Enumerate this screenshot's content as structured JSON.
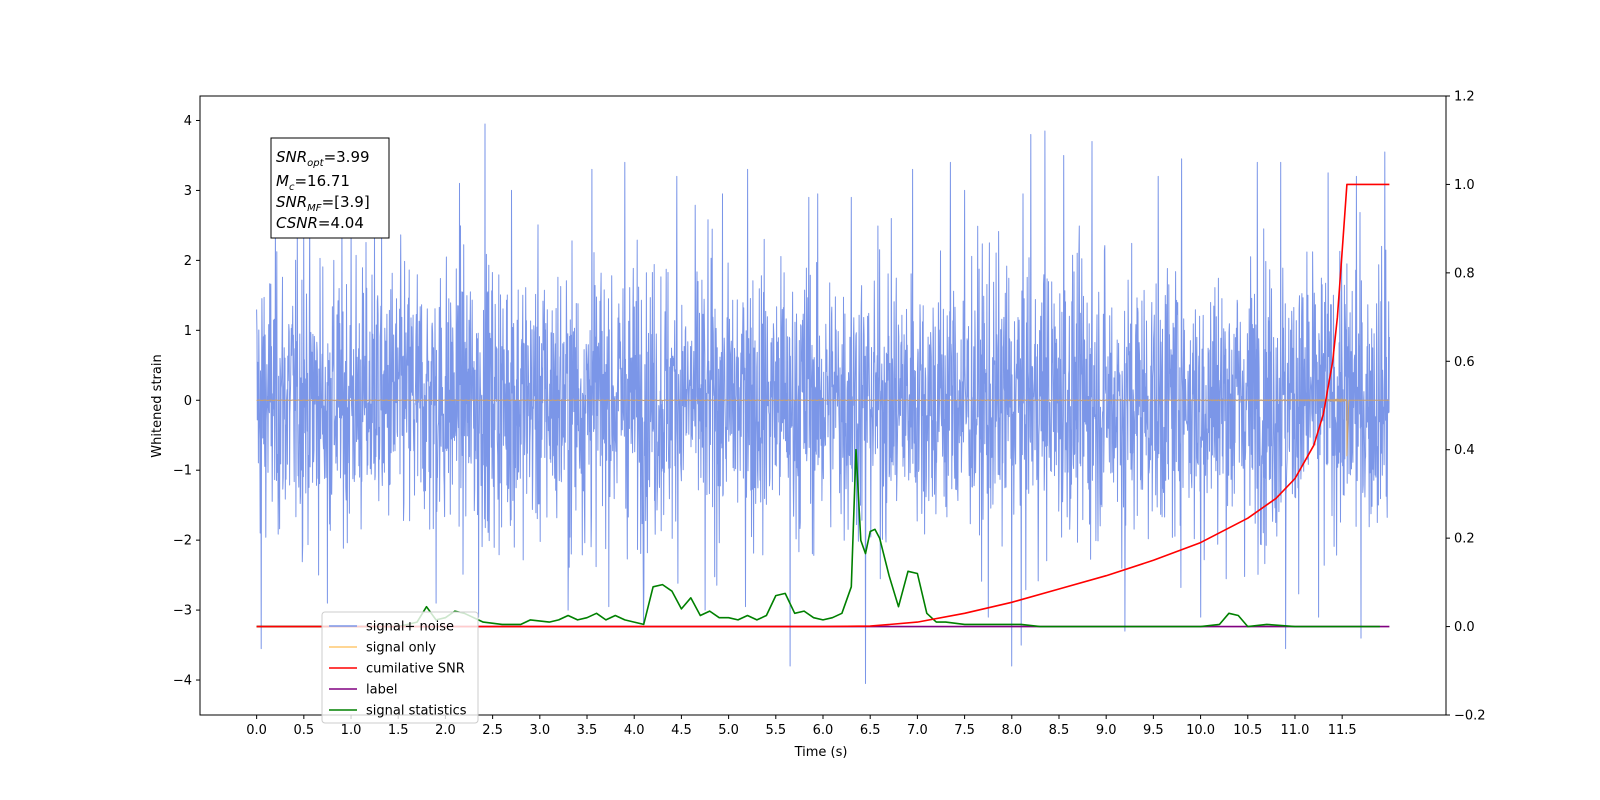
{
  "chart_data": {
    "type": "line",
    "xlabel": "Time (s)",
    "ylabel": "Whitened strain",
    "xlim": [
      -0.6,
      12.6
    ],
    "ylim": [
      -4.5,
      4.35
    ],
    "y2lim": [
      -0.2,
      1.2
    ],
    "x_ticks": [
      "0.0",
      "0.5",
      "1.0",
      "1.5",
      "2.0",
      "2.5",
      "3.0",
      "3.5",
      "4.0",
      "4.5",
      "5.0",
      "5.5",
      "6.0",
      "6.5",
      "7.0",
      "7.5",
      "8.0",
      "8.5",
      "9.0",
      "9.5",
      "10.0",
      "10.5",
      "11.0",
      "11.5"
    ],
    "y_ticks": [
      "−4",
      "−3",
      "−2",
      "−1",
      "0",
      "1",
      "2",
      "3",
      "4"
    ],
    "y2_ticks": [
      "−0.2",
      "0.0",
      "0.2",
      "0.4",
      "0.6",
      "0.8",
      "1.0",
      "1.2"
    ],
    "info_box": {
      "snr_opt": {
        "base": "SNR",
        "sub": "opt",
        "value": "=3.99"
      },
      "mc": {
        "base": "M",
        "sub": "c",
        "value": "=16.71"
      },
      "snr_mf": {
        "base": "SNR",
        "sub": "MF",
        "value": "=[3.9]"
      },
      "csnr": {
        "base": "CSNR",
        "value": "=4.04"
      }
    },
    "legend": {
      "placement": "lower-left",
      "entries": [
        {
          "label": "signal+ noise",
          "color": "#7b96e8"
        },
        {
          "label": "signal only",
          "color": "#ffc870"
        },
        {
          "label": "cumilative SNR",
          "color": "#ff0000"
        },
        {
          "label": "label",
          "color": "#800080"
        },
        {
          "label": "signal statistics",
          "color": "#008000"
        }
      ]
    },
    "series": [
      {
        "name": "signal+ noise",
        "axis": "left",
        "color": "#7b96e8",
        "kind": "noise",
        "x_range": [
          0.0,
          12.0
        ],
        "envelope_typical": 1.3,
        "peaks": [
          [
            0.05,
            -3.55
          ],
          [
            0.2,
            2.5
          ],
          [
            0.5,
            2.4
          ],
          [
            0.75,
            -2.9
          ],
          [
            1.0,
            2.5
          ],
          [
            1.25,
            2.5
          ],
          [
            1.9,
            -2.9
          ],
          [
            2.15,
            3.1
          ],
          [
            2.35,
            -3.1
          ],
          [
            2.42,
            3.95
          ],
          [
            2.7,
            3.0
          ],
          [
            3.3,
            -3.0
          ],
          [
            3.55,
            3.3
          ],
          [
            3.9,
            3.4
          ],
          [
            4.1,
            -3.2
          ],
          [
            4.45,
            3.2
          ],
          [
            4.75,
            -3.0
          ],
          [
            5.2,
            3.3
          ],
          [
            5.65,
            -3.8
          ],
          [
            5.85,
            2.9
          ],
          [
            6.45,
            -4.05
          ],
          [
            6.3,
            2.9
          ],
          [
            6.95,
            3.3
          ],
          [
            7.35,
            3.4
          ],
          [
            7.5,
            3.0
          ],
          [
            7.75,
            -3.1
          ],
          [
            8.0,
            -3.8
          ],
          [
            8.1,
            -3.5
          ],
          [
            8.2,
            3.8
          ],
          [
            8.35,
            3.85
          ],
          [
            8.55,
            3.5
          ],
          [
            8.85,
            3.7
          ],
          [
            9.2,
            -3.3
          ],
          [
            9.55,
            3.2
          ],
          [
            9.8,
            3.45
          ],
          [
            10.0,
            -3.1
          ],
          [
            10.6,
            3.4
          ],
          [
            10.85,
            3.4
          ],
          [
            10.9,
            -3.55
          ],
          [
            11.25,
            -3.1
          ],
          [
            11.35,
            3.25
          ],
          [
            11.65,
            3.2
          ],
          [
            11.95,
            3.55
          ],
          [
            11.7,
            -3.4
          ]
        ]
      },
      {
        "name": "signal only",
        "axis": "left",
        "color": "#c8a070",
        "kind": "chirp",
        "x_range": [
          0.0,
          12.0
        ],
        "merger_time": 11.55,
        "amplitude_at_merger": 0.75
      },
      {
        "name": "cumilative SNR",
        "axis": "right",
        "color": "#ff0000",
        "x": [
          0.0,
          6.0,
          6.5,
          7.0,
          7.5,
          8.0,
          8.5,
          9.0,
          9.5,
          10.0,
          10.5,
          10.8,
          11.0,
          11.2,
          11.3,
          11.4,
          11.45,
          11.5,
          11.55,
          12.0
        ],
        "y": [
          0.0,
          0.0,
          0.001,
          0.01,
          0.03,
          0.055,
          0.085,
          0.115,
          0.15,
          0.19,
          0.245,
          0.29,
          0.335,
          0.41,
          0.48,
          0.6,
          0.7,
          0.85,
          1.0,
          1.0
        ]
      },
      {
        "name": "label",
        "axis": "right",
        "color": "#800080",
        "x": [
          0.0,
          12.0
        ],
        "y": [
          0.0,
          0.0
        ]
      },
      {
        "name": "signal statistics",
        "axis": "right",
        "color": "#008000",
        "x": [
          0.0,
          1.5,
          1.7,
          1.8,
          1.9,
          2.0,
          2.1,
          2.2,
          2.4,
          2.6,
          2.8,
          2.9,
          3.1,
          3.2,
          3.3,
          3.4,
          3.5,
          3.6,
          3.7,
          3.8,
          3.9,
          4.0,
          4.1,
          4.2,
          4.3,
          4.4,
          4.5,
          4.6,
          4.7,
          4.8,
          4.9,
          5.0,
          5.1,
          5.2,
          5.3,
          5.4,
          5.5,
          5.6,
          5.7,
          5.8,
          5.9,
          6.0,
          6.1,
          6.2,
          6.3,
          6.35,
          6.4,
          6.45,
          6.5,
          6.55,
          6.6,
          6.7,
          6.8,
          6.9,
          7.0,
          7.1,
          7.2,
          7.3,
          7.5,
          7.8,
          8.0,
          8.1,
          8.3,
          8.5,
          9.0,
          10.0,
          10.2,
          10.3,
          10.4,
          10.5,
          10.7,
          11.0,
          11.5,
          11.9
        ],
        "y": [
          0.0,
          0.0,
          0.01,
          0.045,
          0.015,
          0.02,
          0.035,
          0.03,
          0.01,
          0.005,
          0.005,
          0.015,
          0.01,
          0.015,
          0.025,
          0.015,
          0.02,
          0.03,
          0.015,
          0.025,
          0.015,
          0.01,
          0.005,
          0.09,
          0.095,
          0.08,
          0.04,
          0.065,
          0.025,
          0.035,
          0.02,
          0.02,
          0.015,
          0.025,
          0.015,
          0.025,
          0.07,
          0.075,
          0.03,
          0.035,
          0.02,
          0.015,
          0.02,
          0.03,
          0.09,
          0.4,
          0.195,
          0.165,
          0.215,
          0.22,
          0.2,
          0.115,
          0.045,
          0.125,
          0.12,
          0.03,
          0.01,
          0.01,
          0.005,
          0.005,
          0.005,
          0.005,
          0.0,
          0.0,
          0.0,
          0.0,
          0.005,
          0.03,
          0.025,
          0.0,
          0.005,
          0.0,
          0.0,
          0.0
        ]
      }
    ]
  }
}
